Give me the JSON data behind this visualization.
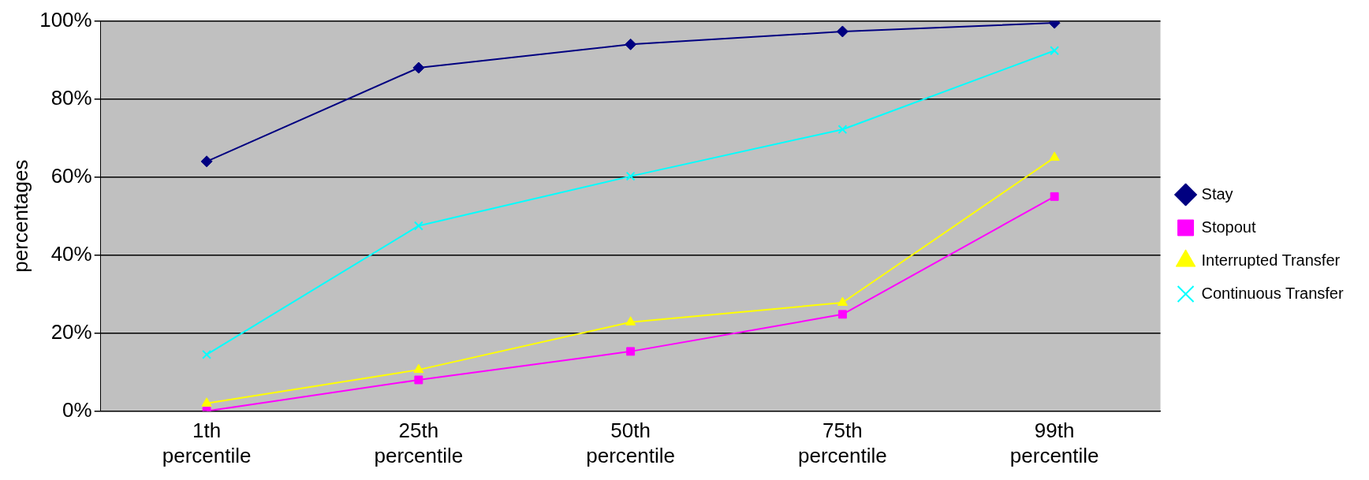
{
  "chart_data": {
    "type": "line",
    "ylabel": "percentages",
    "categories": [
      "1th percentile",
      "25th percentile",
      "50th percentile",
      "75th percentile",
      "99th percentile"
    ],
    "series": [
      {
        "name": "Stay",
        "color": "#000080",
        "marker": "diamond",
        "values": [
          64,
          88,
          94,
          97.3,
          99.5
        ]
      },
      {
        "name": "Stopout",
        "color": "#ff00ff",
        "marker": "square",
        "values": [
          0,
          8,
          15.3,
          24.8,
          55
        ]
      },
      {
        "name": "Interrupted Transfer",
        "color": "#ffff00",
        "marker": "triangle",
        "values": [
          2,
          10.6,
          22.8,
          27.8,
          65
        ]
      },
      {
        "name": "Continuous Transfer",
        "color": "#00ffff",
        "marker": "cross",
        "values": [
          14.5,
          47.5,
          60.2,
          72.2,
          92.4
        ]
      }
    ],
    "ylim": [
      0,
      100
    ],
    "yticks": [
      {
        "value": 0,
        "label": "0%"
      },
      {
        "value": 20,
        "label": "20%"
      },
      {
        "value": 40,
        "label": "40%"
      },
      {
        "value": 60,
        "label": "60%"
      },
      {
        "value": 80,
        "label": "80%"
      },
      {
        "value": 100,
        "label": "100%"
      }
    ],
    "grid": "y",
    "legend": "right"
  }
}
